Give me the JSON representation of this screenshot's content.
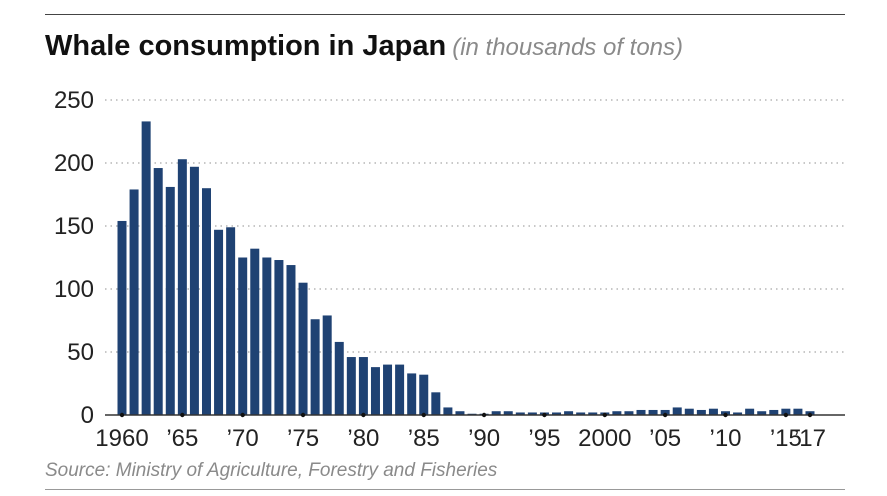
{
  "title": "Whale consumption in Japan",
  "subtitle": "(in thousands of tons)",
  "source": "Source: Ministry of Agriculture, Forestry and Fisheries",
  "colors": {
    "bar": "#1f4273",
    "grid": "#b5b5b5",
    "axis": "#333333"
  },
  "chart_data": {
    "type": "bar",
    "title": "Whale consumption in Japan",
    "subtitle": "(in thousands of tons)",
    "xlabel": "",
    "ylabel": "",
    "ylim": [
      0,
      250
    ],
    "yticks": [
      0,
      50,
      100,
      150,
      200,
      250
    ],
    "grid": "horizontal dotted",
    "legend": "none",
    "categories": [
      1960,
      1961,
      1962,
      1963,
      1964,
      1965,
      1966,
      1967,
      1968,
      1969,
      1970,
      1971,
      1972,
      1973,
      1974,
      1975,
      1976,
      1977,
      1978,
      1979,
      1980,
      1981,
      1982,
      1983,
      1984,
      1985,
      1986,
      1987,
      1988,
      1989,
      1990,
      1991,
      1992,
      1993,
      1994,
      1995,
      1996,
      1997,
      1998,
      1999,
      2000,
      2001,
      2002,
      2003,
      2004,
      2005,
      2006,
      2007,
      2008,
      2009,
      2010,
      2011,
      2012,
      2013,
      2014,
      2015,
      2016,
      2017
    ],
    "values": [
      154,
      179,
      233,
      196,
      181,
      203,
      197,
      180,
      147,
      149,
      125,
      132,
      125,
      123,
      119,
      105,
      76,
      79,
      58,
      46,
      46,
      38,
      40,
      40,
      33,
      32,
      18,
      6,
      3,
      1,
      1,
      3,
      3,
      2,
      2,
      2,
      2,
      3,
      2,
      2,
      2,
      3,
      3,
      4,
      4,
      4,
      6,
      5,
      4,
      5,
      3,
      2,
      5,
      3,
      4,
      5,
      5,
      3
    ],
    "x_tick_labels": [
      {
        "year": 1960,
        "label": "1960"
      },
      {
        "year": 1965,
        "label": "’65"
      },
      {
        "year": 1970,
        "label": "’70"
      },
      {
        "year": 1975,
        "label": "’75"
      },
      {
        "year": 1980,
        "label": "’80"
      },
      {
        "year": 1985,
        "label": "’85"
      },
      {
        "year": 1990,
        "label": "’90"
      },
      {
        "year": 1995,
        "label": "’95"
      },
      {
        "year": 2000,
        "label": "2000"
      },
      {
        "year": 2005,
        "label": "’05"
      },
      {
        "year": 2010,
        "label": "’10"
      },
      {
        "year": 2015,
        "label": "’15"
      },
      {
        "year": 2017,
        "label": "’17"
      }
    ]
  }
}
